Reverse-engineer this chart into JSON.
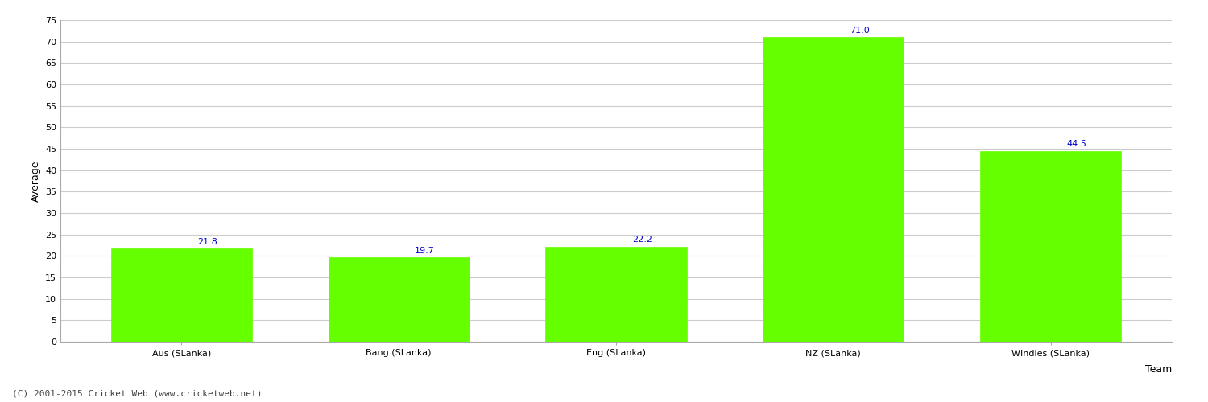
{
  "categories": [
    "Aus (SLanka)",
    "Bang (SLanka)",
    "Eng (SLanka)",
    "NZ (SLanka)",
    "WIndies (SLanka)"
  ],
  "values": [
    21.8,
    19.7,
    22.2,
    71.0,
    44.5
  ],
  "bar_color": "#66ff00",
  "bar_edge_color": "#66ff00",
  "xlabel": "Team",
  "ylabel": "Average",
  "ylim": [
    0,
    75
  ],
  "yticks": [
    0,
    5,
    10,
    15,
    20,
    25,
    30,
    35,
    40,
    45,
    50,
    55,
    60,
    65,
    70,
    75
  ],
  "label_color": "#0000cc",
  "label_fontsize": 8,
  "axis_label_fontsize": 9,
  "tick_fontsize": 8,
  "background_color": "#ffffff",
  "grid_color": "#cccccc",
  "footer_text": "(C) 2001-2015 Cricket Web (www.cricketweb.net)",
  "footer_fontsize": 8,
  "footer_color": "#444444"
}
